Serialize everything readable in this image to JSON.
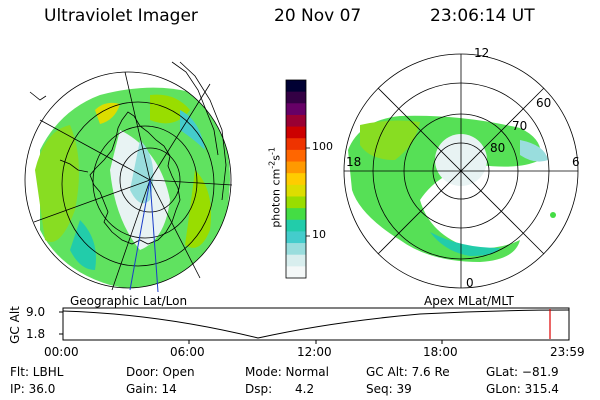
{
  "header": {
    "title": "Ultraviolet Imager",
    "date": "20 Nov 07",
    "time": "23:06:14 UT"
  },
  "left_map": {
    "label": "Geographic Lat/Lon"
  },
  "right_map": {
    "label": "Apex  MLat/MLT",
    "mlt_labels": [
      "12",
      "18",
      "6",
      "0"
    ],
    "lat_labels": [
      "60",
      "70",
      "80"
    ]
  },
  "colorbar": {
    "unit_label": "photon cm-2s-1",
    "tick_labels": [
      "100",
      "10"
    ],
    "colors": [
      "#000033",
      "#330044",
      "#660066",
      "#990033",
      "#cc0000",
      "#ee3300",
      "#ff6600",
      "#ff9900",
      "#ffcc00",
      "#dddd00",
      "#99dd00",
      "#44dd44",
      "#22ccaa",
      "#44cccc",
      "#99dddd",
      "#d8eeee",
      "#f4f8f8"
    ]
  },
  "altitude_plot": {
    "ylabel": "GC Alt",
    "y_ticks": [
      "9.0",
      "1.8"
    ],
    "x_ticks": [
      "00:00",
      "06:00",
      "12:00",
      "18:00",
      "23:59"
    ],
    "current_time_color": "#dd0000"
  },
  "info": {
    "flt": "Flt: LBHL",
    "ip": "IP: 36.0",
    "door": "Door: Open",
    "gain": "Gain: 14",
    "mode": "Mode: Normal",
    "dsp": "Dsp:      4.2",
    "gc_alt": "GC Alt: 7.6 Re",
    "seq": "Seq: 39",
    "glat": "GLat: −81.9",
    "glon": "GLon: 315.4"
  }
}
